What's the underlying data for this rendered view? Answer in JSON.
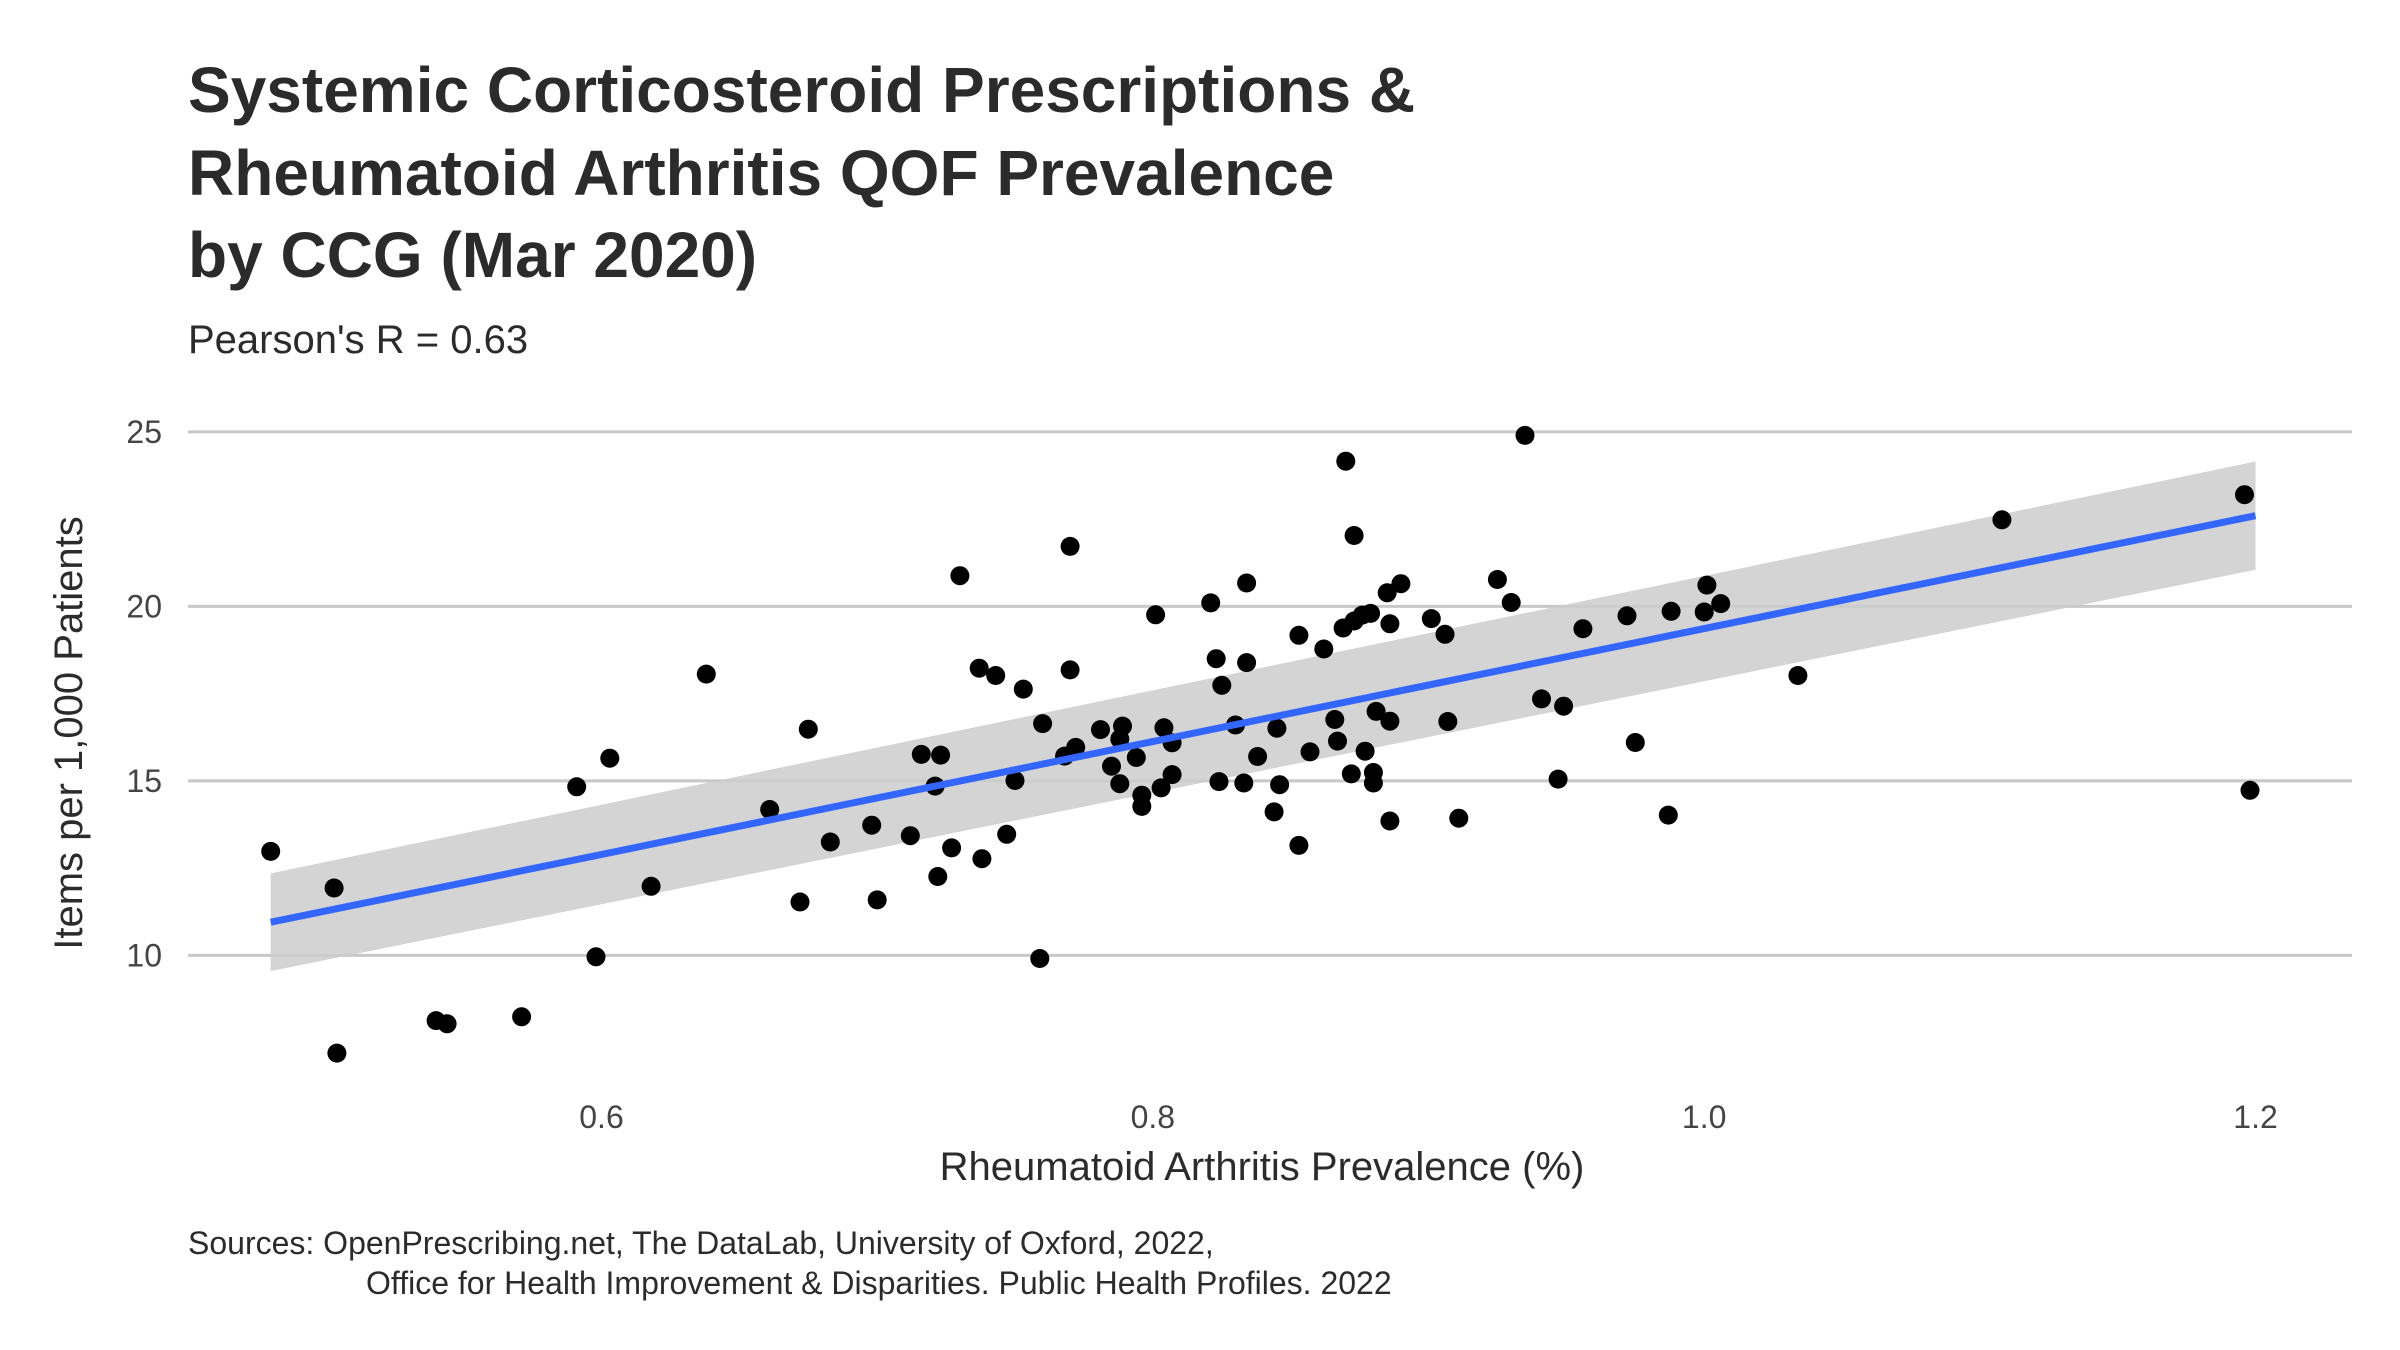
{
  "chart_data": {
    "type": "scatter",
    "title": [
      "Systemic Corticosteroid Prescriptions &",
      "Rheumatoid Arthritis QOF Prevalence",
      "by CCG (Mar 2020)"
    ],
    "subtitle": "Pearson's R =  0.63",
    "xlabel": "Rheumatoid Arthritis Prevalence (%)",
    "ylabel": "Items per 1,000 Patients",
    "caption": [
      "Sources: OpenPrescribing.net, The DataLab, University of Oxford, 2022,",
      "Office for Health Improvement & Disparities. Public Health Profiles. 2022"
    ],
    "xlim": [
      0.45,
      1.235
    ],
    "ylim": [
      6.2,
      26.2
    ],
    "x_ticks": [
      0.6,
      0.8,
      1.0,
      1.2
    ],
    "x_tick_labels": [
      "0.6",
      "0.8",
      "1.0",
      "1.2"
    ],
    "y_ticks": [
      10,
      15,
      20,
      25
    ],
    "y_tick_labels": [
      "10",
      "15",
      "20",
      "25"
    ],
    "grid": "horizontal major",
    "legend": "none",
    "colors": {
      "points": "#000000",
      "trend_line": "#3366FF",
      "confidence_band": "#CCCCCC",
      "grid": "#C8C8C8",
      "text": "#222222"
    },
    "trend": {
      "method": "linear",
      "x_start": 0.48,
      "x_end": 1.2,
      "y_start": 10.95,
      "y_end": 22.6,
      "band_low_start": 9.55,
      "band_high_start": 12.35,
      "band_low_end": 21.05,
      "band_high_end": 24.15
    },
    "points": [
      {
        "x": 0.48,
        "y": 12.98
      },
      {
        "x": 0.503,
        "y": 11.93
      },
      {
        "x": 0.504,
        "y": 7.2
      },
      {
        "x": 0.54,
        "y": 8.13
      },
      {
        "x": 0.544,
        "y": 8.04
      },
      {
        "x": 0.571,
        "y": 8.24
      },
      {
        "x": 0.591,
        "y": 14.83
      },
      {
        "x": 0.598,
        "y": 9.96
      },
      {
        "x": 0.603,
        "y": 15.65
      },
      {
        "x": 0.618,
        "y": 11.98
      },
      {
        "x": 0.638,
        "y": 18.06
      },
      {
        "x": 0.661,
        "y": 14.18
      },
      {
        "x": 0.672,
        "y": 11.53
      },
      {
        "x": 0.675,
        "y": 16.48
      },
      {
        "x": 0.683,
        "y": 13.25
      },
      {
        "x": 0.698,
        "y": 13.73
      },
      {
        "x": 0.7,
        "y": 11.59
      },
      {
        "x": 0.712,
        "y": 13.43
      },
      {
        "x": 0.716,
        "y": 15.76
      },
      {
        "x": 0.721,
        "y": 14.85
      },
      {
        "x": 0.722,
        "y": 12.26
      },
      {
        "x": 0.723,
        "y": 15.74
      },
      {
        "x": 0.727,
        "y": 13.08
      },
      {
        "x": 0.73,
        "y": 20.88
      },
      {
        "x": 0.737,
        "y": 18.23
      },
      {
        "x": 0.738,
        "y": 12.77
      },
      {
        "x": 0.743,
        "y": 18.02
      },
      {
        "x": 0.747,
        "y": 13.47
      },
      {
        "x": 0.75,
        "y": 15.01
      },
      {
        "x": 0.753,
        "y": 17.63
      },
      {
        "x": 0.759,
        "y": 9.91
      },
      {
        "x": 0.76,
        "y": 16.64
      },
      {
        "x": 0.768,
        "y": 15.71
      },
      {
        "x": 0.77,
        "y": 21.72
      },
      {
        "x": 0.77,
        "y": 18.18
      },
      {
        "x": 0.772,
        "y": 15.96
      },
      {
        "x": 0.781,
        "y": 16.47
      },
      {
        "x": 0.785,
        "y": 15.42
      },
      {
        "x": 0.788,
        "y": 14.92
      },
      {
        "x": 0.788,
        "y": 16.2
      },
      {
        "x": 0.789,
        "y": 16.57
      },
      {
        "x": 0.794,
        "y": 15.67
      },
      {
        "x": 0.796,
        "y": 14.59
      },
      {
        "x": 0.796,
        "y": 14.27
      },
      {
        "x": 0.801,
        "y": 19.76
      },
      {
        "x": 0.803,
        "y": 14.8
      },
      {
        "x": 0.804,
        "y": 16.52
      },
      {
        "x": 0.807,
        "y": 16.09
      },
      {
        "x": 0.807,
        "y": 15.18
      },
      {
        "x": 0.821,
        "y": 20.1
      },
      {
        "x": 0.823,
        "y": 18.5
      },
      {
        "x": 0.824,
        "y": 14.98
      },
      {
        "x": 0.825,
        "y": 17.74
      },
      {
        "x": 0.83,
        "y": 16.6
      },
      {
        "x": 0.833,
        "y": 14.94
      },
      {
        "x": 0.834,
        "y": 18.39
      },
      {
        "x": 0.834,
        "y": 20.67
      },
      {
        "x": 0.838,
        "y": 15.7
      },
      {
        "x": 0.844,
        "y": 14.11
      },
      {
        "x": 0.845,
        "y": 16.51
      },
      {
        "x": 0.846,
        "y": 14.89
      },
      {
        "x": 0.853,
        "y": 13.15
      },
      {
        "x": 0.853,
        "y": 19.17
      },
      {
        "x": 0.857,
        "y": 15.83
      },
      {
        "x": 0.862,
        "y": 18.78
      },
      {
        "x": 0.866,
        "y": 16.76
      },
      {
        "x": 0.867,
        "y": 16.14
      },
      {
        "x": 0.869,
        "y": 19.38
      },
      {
        "x": 0.87,
        "y": 24.16
      },
      {
        "x": 0.872,
        "y": 15.2
      },
      {
        "x": 0.873,
        "y": 22.03
      },
      {
        "x": 0.873,
        "y": 19.58
      },
      {
        "x": 0.876,
        "y": 19.75
      },
      {
        "x": 0.877,
        "y": 15.85
      },
      {
        "x": 0.879,
        "y": 19.8
      },
      {
        "x": 0.88,
        "y": 15.24
      },
      {
        "x": 0.88,
        "y": 14.94
      },
      {
        "x": 0.881,
        "y": 16.99
      },
      {
        "x": 0.885,
        "y": 20.39
      },
      {
        "x": 0.886,
        "y": 16.71
      },
      {
        "x": 0.886,
        "y": 19.5
      },
      {
        "x": 0.886,
        "y": 13.85
      },
      {
        "x": 0.89,
        "y": 20.65
      },
      {
        "x": 0.901,
        "y": 19.65
      },
      {
        "x": 0.906,
        "y": 19.2
      },
      {
        "x": 0.907,
        "y": 16.7
      },
      {
        "x": 0.911,
        "y": 13.93
      },
      {
        "x": 0.925,
        "y": 20.77
      },
      {
        "x": 0.93,
        "y": 20.11
      },
      {
        "x": 0.935,
        "y": 24.9
      },
      {
        "x": 0.941,
        "y": 17.35
      },
      {
        "x": 0.947,
        "y": 15.05
      },
      {
        "x": 0.949,
        "y": 17.14
      },
      {
        "x": 0.956,
        "y": 19.36
      },
      {
        "x": 0.972,
        "y": 19.73
      },
      {
        "x": 0.975,
        "y": 16.1
      },
      {
        "x": 0.987,
        "y": 14.02
      },
      {
        "x": 0.988,
        "y": 19.86
      },
      {
        "x": 1.0,
        "y": 19.84
      },
      {
        "x": 1.001,
        "y": 20.61
      },
      {
        "x": 1.006,
        "y": 20.08
      },
      {
        "x": 1.034,
        "y": 18.02
      },
      {
        "x": 1.108,
        "y": 22.48
      },
      {
        "x": 1.196,
        "y": 23.2
      },
      {
        "x": 1.198,
        "y": 14.73
      }
    ]
  }
}
